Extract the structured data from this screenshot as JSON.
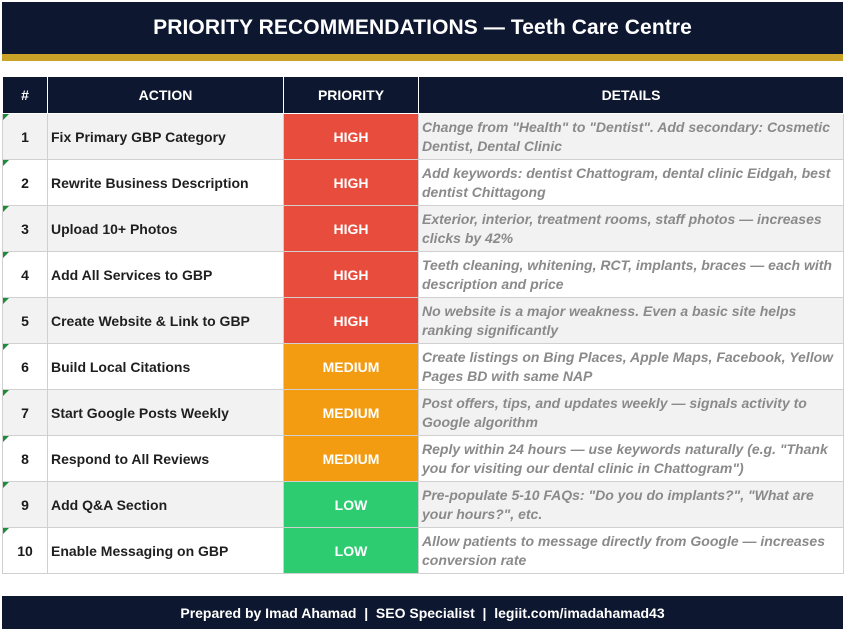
{
  "title": "PRIORITY RECOMMENDATIONS — Teeth Care Centre",
  "colors": {
    "navy": "#0e1730",
    "gold": "#c9a227",
    "high": "#e74c3c",
    "medium": "#f39c12",
    "low": "#2ecc71"
  },
  "table": {
    "headers": {
      "num": "#",
      "action": "ACTION",
      "priority": "PRIORITY",
      "details": "DETAILS"
    },
    "rows": [
      {
        "num": "1",
        "action": "Fix Primary GBP Category",
        "priority": "HIGH",
        "level": "high",
        "details": "Change from \"Health\" to \"Dentist\". Add secondary: Cosmetic Dentist, Dental Clinic"
      },
      {
        "num": "2",
        "action": "Rewrite Business Description",
        "priority": "HIGH",
        "level": "high",
        "details": "Add keywords: dentist Chattogram, dental clinic Eidgah, best dentist Chittagong"
      },
      {
        "num": "3",
        "action": "Upload 10+ Photos",
        "priority": "HIGH",
        "level": "high",
        "details": "Exterior, interior, treatment rooms, staff photos — increases clicks by 42%"
      },
      {
        "num": "4",
        "action": "Add All Services to GBP",
        "priority": "HIGH",
        "level": "high",
        "details": "Teeth cleaning, whitening, RCT, implants, braces — each with description and price"
      },
      {
        "num": "5",
        "action": "Create Website & Link to GBP",
        "priority": "HIGH",
        "level": "high",
        "details": "No website is a major weakness. Even a basic site helps ranking significantly"
      },
      {
        "num": "6",
        "action": "Build Local Citations",
        "priority": "MEDIUM",
        "level": "medium",
        "details": "Create listings on Bing Places, Apple Maps, Facebook, Yellow Pages BD with same NAP"
      },
      {
        "num": "7",
        "action": "Start Google Posts Weekly",
        "priority": "MEDIUM",
        "level": "medium",
        "details": "Post offers, tips, and updates weekly — signals activity to Google algorithm"
      },
      {
        "num": "8",
        "action": "Respond to All Reviews",
        "priority": "MEDIUM",
        "level": "medium",
        "details": "Reply within 24 hours — use keywords naturally (e.g. \"Thank you for visiting our dental clinic in Chattogram\")"
      },
      {
        "num": "9",
        "action": "Add Q&A Section",
        "priority": "LOW",
        "level": "low",
        "details": "Pre-populate 5-10 FAQs: \"Do you do implants?\", \"What are your hours?\", etc."
      },
      {
        "num": "10",
        "action": "Enable Messaging on GBP",
        "priority": "LOW",
        "level": "low",
        "details": "Allow patients to message directly from Google — increases conversion rate"
      }
    ]
  },
  "footer": "Prepared by Imad Ahamad  |  SEO Specialist  |  legiit.com/imadahamad43"
}
